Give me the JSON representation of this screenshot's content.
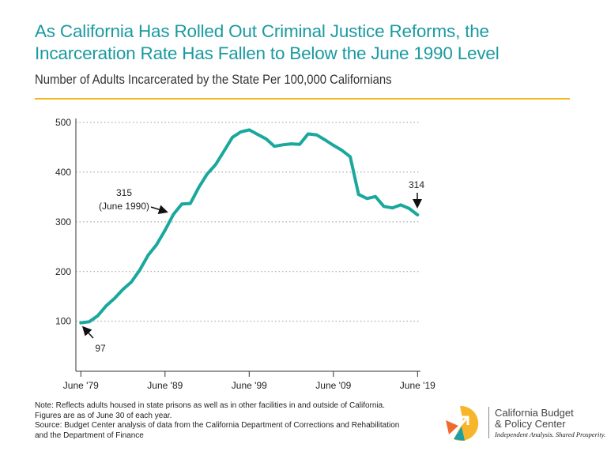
{
  "header": {
    "title_line1": "As California Has Rolled Out Criminal Justice Reforms, the",
    "title_line2": "Incarceration Rate Has Fallen to Below the June 1990 Level",
    "subtitle": "Number of Adults Incarcerated by the State Per 100,000 Californians"
  },
  "colors": {
    "line": "#1aa89c",
    "title": "#1a9aa0",
    "rule": "#f2b51c"
  },
  "chart_data": {
    "type": "line",
    "title": "As California Has Rolled Out Criminal Justice Reforms, the Incarceration Rate Has Fallen to Below the June 1990 Level",
    "ylabel": "Number of Adults Incarcerated by the State Per 100,000 Californians",
    "xlim": [
      1979,
      2019
    ],
    "ylim": [
      0,
      500
    ],
    "grid": "horizontal dotted",
    "x_ticks": [
      1979,
      1989,
      1999,
      2009,
      2019
    ],
    "x_tick_labels": [
      "June '79",
      "June '89",
      "June '99",
      "June '09",
      "June '19"
    ],
    "y_ticks": [
      100,
      200,
      300,
      400,
      500
    ],
    "y_tick_labels": [
      "100",
      "200",
      "300",
      "400",
      "500"
    ],
    "x": [
      1979,
      1980,
      1981,
      1982,
      1983,
      1984,
      1985,
      1986,
      1987,
      1988,
      1989,
      1990,
      1991,
      1992,
      1993,
      1994,
      1995,
      1996,
      1997,
      1998,
      1999,
      2000,
      2001,
      2002,
      2003,
      2004,
      2005,
      2006,
      2007,
      2008,
      2009,
      2010,
      2011,
      2012,
      2013,
      2014,
      2015,
      2016,
      2017,
      2018,
      2019
    ],
    "values": [
      97,
      99,
      111,
      131,
      146,
      164,
      179,
      203,
      233,
      254,
      283,
      315,
      336,
      337,
      369,
      396,
      415,
      442,
      470,
      481,
      485,
      476,
      467,
      452,
      455,
      457,
      456,
      477,
      475,
      465,
      454,
      444,
      431,
      355,
      347,
      351,
      331,
      328,
      334,
      327,
      314
    ],
    "annotations": [
      {
        "x": 1979,
        "y": 97,
        "text": "97"
      },
      {
        "x": 1990,
        "y": 315,
        "text": "315",
        "text2": "(June 1990)"
      },
      {
        "x": 2019,
        "y": 314,
        "text": "314"
      }
    ]
  },
  "footer": {
    "note1": "Note: Reflects adults housed in state prisons as well as in other facilities in and outside of California.",
    "note2": "Figures are as of June 30 of each year.",
    "source1": "Source: Budget Center analysis of data from the California Department of Corrections and Rehabilitation",
    "source2": "and the Department of Finance"
  },
  "logo": {
    "line1": "California Budget",
    "line2": "& Policy Center",
    "tagline": "Independent Analysis. Shared Prosperity."
  }
}
